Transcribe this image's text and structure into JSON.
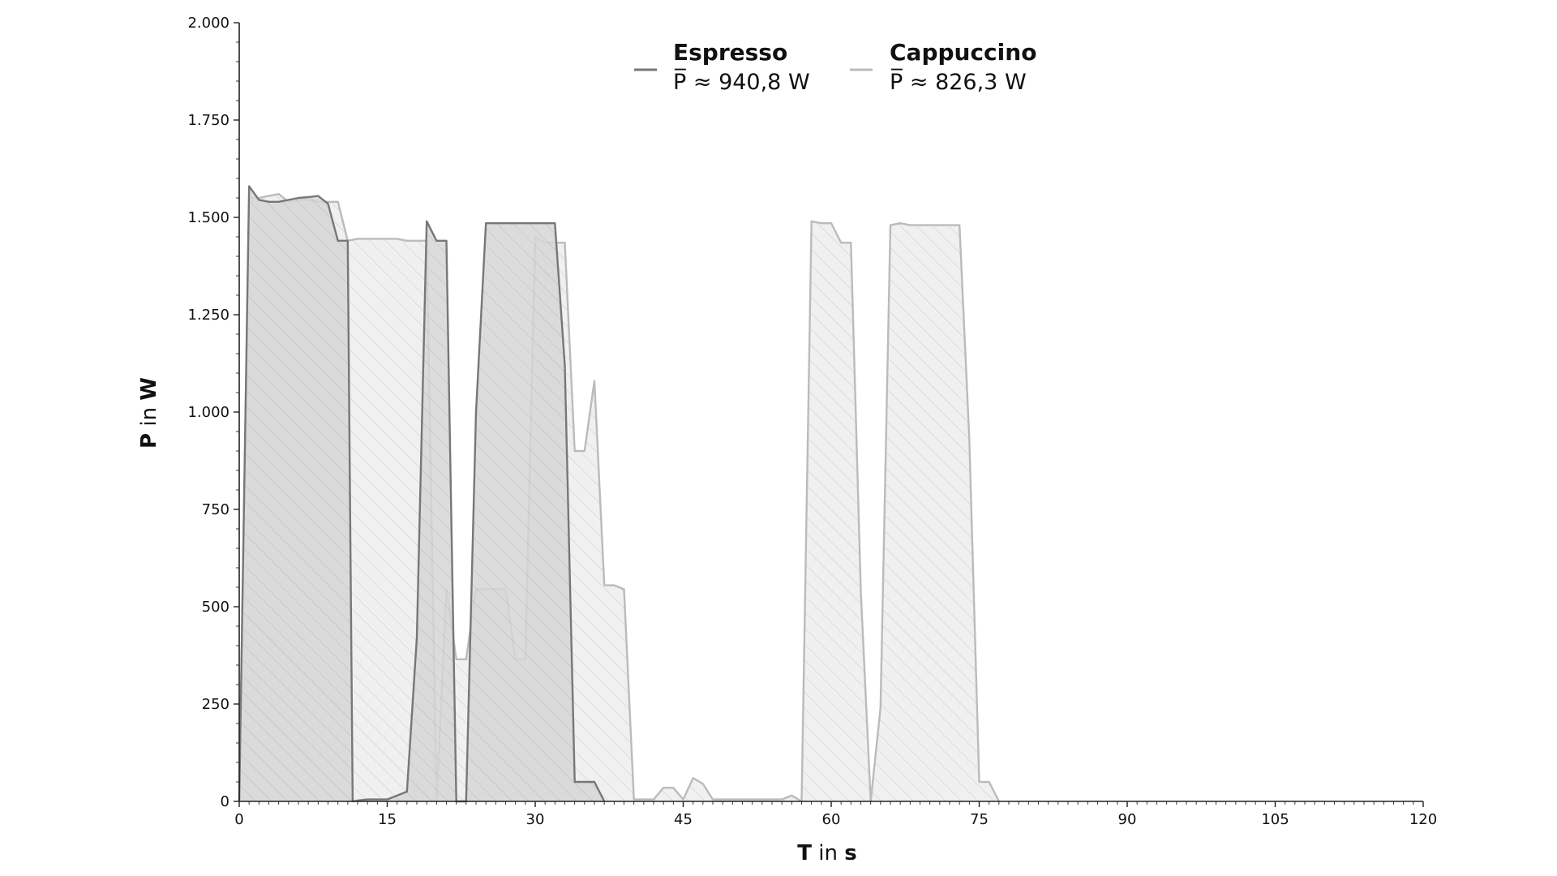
{
  "chart_data": {
    "type": "area",
    "xlabel": {
      "bold": "T",
      "rest": " in ",
      "unit": "s"
    },
    "ylabel": {
      "bold": "P",
      "rest": " in ",
      "unit": "W"
    },
    "xlim": [
      0,
      120
    ],
    "ylim": [
      0,
      2000
    ],
    "x_ticks": [
      0,
      15,
      30,
      45,
      60,
      75,
      90,
      105,
      120
    ],
    "x_tick_labels": [
      "0",
      "15",
      "30",
      "45",
      "60",
      "75",
      "90",
      "105",
      "120"
    ],
    "y_ticks": [
      0,
      250,
      500,
      750,
      1000,
      1250,
      1500,
      1750,
      2000
    ],
    "y_tick_labels": [
      "0",
      "250",
      "500",
      "750",
      "1.000",
      "1.250",
      "1.500",
      "1.750",
      "2.000"
    ],
    "grid": false,
    "legend_position": "top-center",
    "series": [
      {
        "name": "Espresso",
        "mean_label": "P̅ ≈ 940,8 W",
        "line_color": "#777777",
        "fill_color": "#d6d6d6",
        "x": [
          0,
          1,
          2,
          3,
          4,
          5,
          6,
          7,
          8,
          9,
          10,
          11,
          11.5,
          12,
          13,
          14,
          15,
          16,
          17,
          18,
          19,
          20,
          21,
          22,
          23,
          24,
          25,
          26,
          27,
          28,
          29,
          30,
          31,
          32,
          33,
          34,
          35,
          36,
          37
        ],
        "y": [
          0,
          1580,
          1545,
          1540,
          1540,
          1545,
          1550,
          1552,
          1555,
          1535,
          1440,
          1440,
          0,
          2,
          5,
          5,
          5,
          15,
          25,
          420,
          1490,
          1440,
          1440,
          0,
          0,
          1000,
          1485,
          1485,
          1485,
          1485,
          1485,
          1485,
          1485,
          1485,
          1120,
          50,
          50,
          50,
          0
        ]
      },
      {
        "name": "Cappuccino",
        "mean_label": "P̅ ≈ 826,3 W",
        "line_color": "#bbbbbb",
        "fill_color": "#ededed",
        "x": [
          0,
          1,
          2,
          3,
          4,
          5,
          6,
          7,
          8,
          9,
          10,
          11,
          12,
          13,
          14,
          15,
          16,
          17,
          18,
          19,
          20,
          21,
          22,
          23,
          24,
          25,
          26,
          27,
          28,
          29,
          30,
          31,
          32,
          33,
          34,
          35,
          36,
          37,
          38,
          39,
          40,
          41,
          42,
          43,
          44,
          45,
          46,
          47,
          48,
          49,
          50,
          51,
          52,
          53,
          54,
          55,
          56,
          57,
          58,
          59,
          60,
          61,
          62,
          63,
          64,
          65,
          66,
          67,
          68,
          69,
          70,
          71,
          72,
          73,
          74,
          75,
          76,
          77
        ],
        "y": [
          0,
          1550,
          1550,
          1555,
          1560,
          1540,
          1545,
          1545,
          1540,
          1540,
          1540,
          1440,
          1445,
          1445,
          1445,
          1445,
          1445,
          1440,
          1440,
          1440,
          0,
          545,
          365,
          365,
          545,
          545,
          545,
          545,
          365,
          365,
          1450,
          1435,
          1435,
          1435,
          900,
          900,
          1080,
          555,
          555,
          545,
          5,
          5,
          5,
          35,
          35,
          5,
          60,
          45,
          5,
          5,
          5,
          5,
          5,
          5,
          5,
          5,
          15,
          0,
          1490,
          1485,
          1485,
          1435,
          1435,
          540,
          0,
          240,
          1480,
          1485,
          1480,
          1480,
          1480,
          1480,
          1480,
          1480,
          930,
          50,
          50,
          0
        ]
      }
    ]
  }
}
